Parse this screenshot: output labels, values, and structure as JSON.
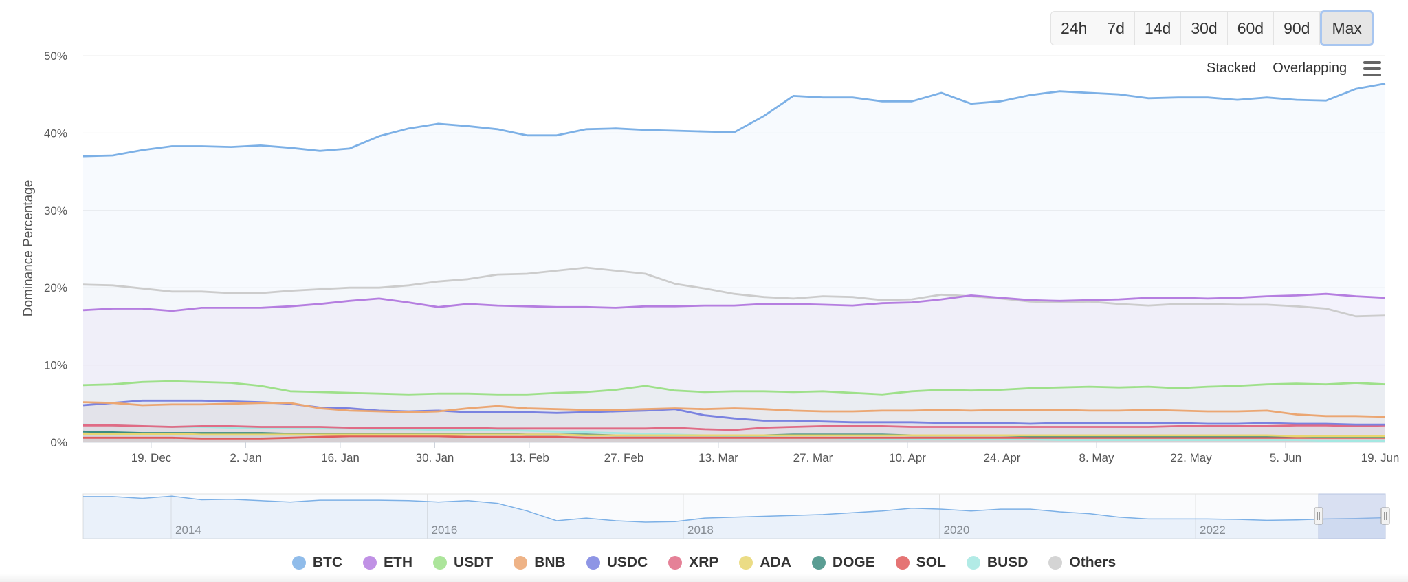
{
  "range_buttons": [
    "24h",
    "7d",
    "14d",
    "30d",
    "60d",
    "90d",
    "Max"
  ],
  "active_range": "Max",
  "modes": {
    "stacked": "Stacked",
    "overlapping": "Overlapping"
  },
  "chart_data": {
    "type": "line",
    "ylabel": "Dominance Percentage",
    "ylim": [
      0,
      50
    ],
    "yticks": [
      "0%",
      "10%",
      "20%",
      "30%",
      "40%",
      "50%"
    ],
    "xticks": [
      "19. Dec",
      "2. Jan",
      "16. Jan",
      "30. Jan",
      "13. Feb",
      "27. Feb",
      "13. Mar",
      "27. Mar",
      "10. Apr",
      "24. Apr",
      "8. May",
      "22. May",
      "5. Jun",
      "19. Jun"
    ],
    "grid": true,
    "legend_position": "bottom",
    "series": [
      {
        "name": "BTC",
        "color": "#7cb0e6",
        "values": [
          37,
          37.1,
          37.8,
          38.3,
          38.3,
          38.2,
          38.4,
          38.1,
          37.7,
          38,
          39.6,
          40.6,
          41.2,
          40.9,
          40.5,
          39.7,
          39.7,
          40.5,
          40.6,
          40.4,
          40.3,
          40.2,
          40.1,
          42.2,
          44.8,
          44.6,
          44.6,
          44.1,
          44.1,
          45.2,
          43.8,
          44.1,
          44.9,
          45.4,
          45.2,
          45,
          44.5,
          44.6,
          44.6,
          44.3,
          44.6,
          44.3,
          44.2,
          45.7,
          46.4
        ]
      },
      {
        "name": "ETH",
        "color": "#b57ee0",
        "values": [
          17.1,
          17.3,
          17.3,
          17,
          17.4,
          17.4,
          17.4,
          17.6,
          17.9,
          18.3,
          18.6,
          18.1,
          17.5,
          17.9,
          17.7,
          17.6,
          17.5,
          17.5,
          17.4,
          17.6,
          17.6,
          17.7,
          17.7,
          17.9,
          17.9,
          17.8,
          17.7,
          18,
          18.1,
          18.5,
          19,
          18.7,
          18.4,
          18.3,
          18.4,
          18.5,
          18.7,
          18.7,
          18.6,
          18.7,
          18.9,
          19,
          19.2,
          18.9,
          18.7
        ]
      },
      {
        "name": "USDT",
        "color": "#9ee08a",
        "values": [
          7.4,
          7.5,
          7.8,
          7.9,
          7.8,
          7.7,
          7.3,
          6.6,
          6.5,
          6.4,
          6.3,
          6.2,
          6.3,
          6.3,
          6.2,
          6.2,
          6.4,
          6.5,
          6.8,
          7.3,
          6.7,
          6.5,
          6.6,
          6.6,
          6.5,
          6.6,
          6.4,
          6.2,
          6.6,
          6.8,
          6.7,
          6.8,
          7.0,
          7.1,
          7.2,
          7.1,
          7.2,
          7.0,
          7.2,
          7.3,
          7.5,
          7.6,
          7.5,
          7.7,
          7.5
        ]
      },
      {
        "name": "BNB",
        "color": "#eba672",
        "values": [
          5.2,
          5.1,
          4.8,
          4.9,
          4.9,
          5,
          5.1,
          5.1,
          4.4,
          4.1,
          4,
          3.9,
          4,
          4.4,
          4.7,
          4.4,
          4.3,
          4.2,
          4.2,
          4.3,
          4.4,
          4.3,
          4.4,
          4.3,
          4.1,
          4,
          4,
          4.1,
          4.1,
          4.2,
          4.1,
          4.2,
          4.2,
          4.2,
          4.1,
          4.1,
          4.2,
          4.1,
          4,
          4,
          4.1,
          3.6,
          3.4,
          3.4,
          3.3
        ]
      },
      {
        "name": "USDC",
        "color": "#7a82e0",
        "values": [
          4.8,
          5.1,
          5.4,
          5.4,
          5.4,
          5.3,
          5.2,
          5,
          4.5,
          4.4,
          4.1,
          4,
          4.1,
          3.9,
          3.9,
          3.9,
          3.8,
          3.9,
          4,
          4.1,
          4.3,
          3.5,
          3.1,
          2.8,
          2.8,
          2.7,
          2.6,
          2.6,
          2.6,
          2.5,
          2.5,
          2.5,
          2.4,
          2.5,
          2.5,
          2.5,
          2.5,
          2.5,
          2.4,
          2.4,
          2.5,
          2.4,
          2.4,
          2.3,
          2.3
        ]
      },
      {
        "name": "XRP",
        "color": "#e06b85",
        "values": [
          2.2,
          2.2,
          2.1,
          2,
          2.1,
          2.1,
          2,
          2,
          2,
          1.9,
          1.9,
          1.9,
          1.9,
          1.9,
          1.8,
          1.8,
          1.8,
          1.8,
          1.8,
          1.8,
          1.9,
          1.7,
          1.6,
          1.9,
          2,
          2.1,
          2.1,
          2.1,
          2,
          2,
          2,
          2,
          2,
          2,
          2,
          2,
          2,
          2.1,
          2.1,
          2.1,
          2.1,
          2.2,
          2.2,
          2.1,
          2.2
        ]
      },
      {
        "name": "ADA",
        "color": "#e8d670",
        "values": [
          1.1,
          1.1,
          1.1,
          1.1,
          1,
          1,
          1,
          1,
          1,
          1,
          1,
          1,
          1,
          1,
          1,
          1,
          1,
          0.9,
          0.9,
          0.9,
          0.9,
          0.9,
          0.9,
          0.9,
          0.9,
          0.9,
          0.9,
          0.9,
          0.9,
          0.9,
          0.9,
          0.9,
          0.9,
          0.9,
          0.9,
          0.9,
          0.9,
          0.9,
          0.9,
          0.9,
          0.9,
          0.8,
          0.8,
          0.8,
          0.8
        ]
      },
      {
        "name": "DOGE",
        "color": "#3d8c80",
        "values": [
          1.4,
          1.3,
          1.2,
          1.2,
          1.2,
          1.2,
          1.2,
          1.1,
          1.1,
          1.1,
          1.1,
          1.1,
          1.1,
          1.1,
          1.1,
          1.0,
          1.0,
          1.0,
          0.9,
          0.9,
          0.9,
          0.9,
          0.9,
          0.9,
          1.0,
          1.0,
          1.0,
          1.0,
          0.9,
          0.9,
          0.9,
          0.9,
          0.8,
          0.8,
          0.8,
          0.8,
          0.8,
          0.8,
          0.8,
          0.8,
          0.8,
          0.8,
          0.7,
          0.7,
          0.7
        ]
      },
      {
        "name": "SOL",
        "color": "#e05c5c",
        "values": [
          0.6,
          0.6,
          0.6,
          0.6,
          0.5,
          0.5,
          0.5,
          0.6,
          0.7,
          0.8,
          0.8,
          0.8,
          0.8,
          0.7,
          0.7,
          0.7,
          0.7,
          0.6,
          0.6,
          0.6,
          0.6,
          0.6,
          0.6,
          0.6,
          0.6,
          0.6,
          0.6,
          0.6,
          0.6,
          0.6,
          0.6,
          0.6,
          0.6,
          0.6,
          0.6,
          0.6,
          0.6,
          0.6,
          0.6,
          0.6,
          0.6,
          0.6,
          0.6,
          0.6,
          0.6
        ]
      },
      {
        "name": "BUSD",
        "color": "#a4e8e2",
        "values": [
          2.3,
          2.2,
          2.1,
          2,
          2,
          1.9,
          1.9,
          1.9,
          1.8,
          1.8,
          1.7,
          1.7,
          1.6,
          1.6,
          1.6,
          1.5,
          1.4,
          1.3,
          1.2,
          1.1,
          1.0,
          0.9,
          0.8,
          0.7,
          0.6,
          0.6,
          0.5,
          0.5,
          0.5,
          0.4,
          0.4,
          0.4,
          0.4,
          0.3,
          0.3,
          0.3,
          0.3,
          0.3,
          0.3,
          0.3,
          0.3,
          0.3,
          0.2,
          0.2,
          0.2
        ]
      },
      {
        "name": "Others",
        "color": "#cccccc",
        "values": [
          20.4,
          20.3,
          19.9,
          19.5,
          19.5,
          19.3,
          19.3,
          19.6,
          19.8,
          20,
          20,
          20.3,
          20.8,
          21.1,
          21.7,
          21.8,
          22.2,
          22.6,
          22.2,
          21.8,
          20.5,
          19.9,
          19.2,
          18.8,
          18.6,
          18.9,
          18.8,
          18.4,
          18.5,
          19.1,
          18.9,
          18.6,
          18.2,
          18.1,
          18.2,
          17.9,
          17.7,
          17.9,
          17.9,
          17.8,
          17.8,
          17.6,
          17.3,
          16.3,
          16.4
        ]
      }
    ],
    "navigator": {
      "xticks": [
        "2014",
        "2016",
        "2018",
        "2020",
        "2022"
      ],
      "btc_history": [
        94,
        94,
        90,
        95,
        87,
        88,
        85,
        82,
        86,
        86,
        86,
        85,
        82,
        85,
        79,
        62,
        40,
        46,
        40,
        37,
        38,
        46,
        48,
        50,
        52,
        54,
        58,
        62,
        68,
        66,
        62,
        66,
        66,
        60,
        56,
        48,
        44,
        44,
        44,
        43,
        41,
        42,
        44,
        45,
        47
      ]
    }
  }
}
